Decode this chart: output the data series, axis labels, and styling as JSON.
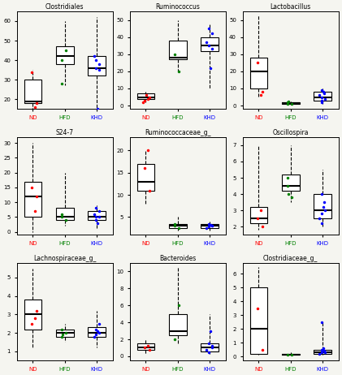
{
  "subplots": [
    {
      "title": "Clostridiales",
      "ylabel_vals": [
        20,
        30,
        40,
        50,
        60
      ],
      "ylim": [
        15,
        65
      ],
      "groups": {
        "ND": {
          "color": "red",
          "whislo": 15,
          "q1": 18,
          "med": 19,
          "q3": 30,
          "whishi": 35,
          "fliers": [
            34,
            18,
            16
          ]
        },
        "HFD": {
          "color": "green",
          "whislo": 27,
          "q1": 38,
          "med": 42,
          "q3": 47,
          "whishi": 60,
          "fliers": [
            40,
            45,
            28
          ]
        },
        "KHD": {
          "color": "blue",
          "whislo": 13,
          "q1": 32,
          "med": 36,
          "q3": 42,
          "whishi": 62,
          "fliers": [
            38,
            42,
            35,
            36,
            40,
            15,
            13
          ]
        }
      }
    },
    {
      "title": "Ruminococcus",
      "ylabel_vals": [
        0,
        10,
        20,
        30,
        40,
        50
      ],
      "ylim": [
        -2,
        55
      ],
      "groups": {
        "ND": {
          "color": "red",
          "whislo": 2,
          "q1": 4,
          "med": 5,
          "q3": 7,
          "whishi": 8,
          "fliers": [
            3,
            5,
            4,
            6,
            2
          ]
        },
        "HFD": {
          "color": "green",
          "whislo": 20,
          "q1": 27,
          "med": 28,
          "q3": 38,
          "whishi": 50,
          "fliers": [
            30,
            20
          ]
        },
        "KHD": {
          "color": "blue",
          "whislo": 10,
          "q1": 32,
          "med": 35,
          "q3": 40,
          "whishi": 48,
          "fliers": [
            33,
            37,
            42,
            45,
            35,
            22
          ]
        }
      }
    },
    {
      "title": "Lactobacillus",
      "ylabel_vals": [
        0,
        10,
        20,
        30,
        40,
        50
      ],
      "ylim": [
        -2,
        55
      ],
      "groups": {
        "ND": {
          "color": "red",
          "whislo": 5,
          "q1": 10,
          "med": 20,
          "q3": 28,
          "whishi": 53,
          "fliers": [
            25,
            8,
            6
          ]
        },
        "HFD": {
          "color": "green",
          "whislo": 0.5,
          "q1": 1,
          "med": 1.5,
          "q3": 2,
          "whishi": 2.5,
          "fliers": [
            1,
            1.2,
            1.8,
            2.2
          ]
        },
        "KHD": {
          "color": "blue",
          "whislo": 1,
          "q1": 3,
          "med": 5,
          "q3": 8,
          "whishi": 10,
          "fliers": [
            4,
            6,
            7,
            5,
            3,
            8,
            9,
            2
          ]
        }
      }
    },
    {
      "title": "S24-7",
      "ylabel_vals": [
        0,
        5,
        10,
        15,
        20,
        25,
        30
      ],
      "ylim": [
        -1,
        32
      ],
      "groups": {
        "ND": {
          "color": "red",
          "whislo": 0,
          "q1": 5,
          "med": 12,
          "q3": 17,
          "whishi": 30,
          "fliers": [
            15,
            12,
            7
          ]
        },
        "HFD": {
          "color": "green",
          "whislo": 2,
          "q1": 4,
          "med": 5,
          "q3": 8,
          "whishi": 20,
          "fliers": [
            5,
            4,
            6
          ]
        },
        "KHD": {
          "color": "blue",
          "whislo": 1,
          "q1": 4,
          "med": 5,
          "q3": 7,
          "whishi": 9,
          "fliers": [
            5,
            6,
            7,
            4,
            5,
            3,
            8
          ]
        }
      }
    },
    {
      "title": "Ruminococcaceae_g_",
      "ylabel_vals": [
        5,
        10,
        15,
        20
      ],
      "ylim": [
        1,
        23
      ],
      "groups": {
        "ND": {
          "color": "red",
          "whislo": 8,
          "q1": 11,
          "med": 13,
          "q3": 17,
          "whishi": 20,
          "fliers": [
            16,
            11,
            20
          ]
        },
        "HFD": {
          "color": "green",
          "whislo": 2,
          "q1": 2.5,
          "med": 3,
          "q3": 3.5,
          "whishi": 5,
          "fliers": [
            3,
            2.5,
            3.5
          ]
        },
        "KHD": {
          "color": "blue",
          "whislo": 2,
          "q1": 2.5,
          "med": 3,
          "q3": 3.5,
          "whishi": 4,
          "fliers": [
            3,
            2.5,
            3,
            3.5,
            2.8,
            3.2
          ]
        }
      }
    },
    {
      "title": "Oscillospira",
      "ylabel_vals": [
        2,
        3,
        4,
        5,
        6,
        7
      ],
      "ylim": [
        1.5,
        7.5
      ],
      "groups": {
        "ND": {
          "color": "red",
          "whislo": 1.8,
          "q1": 2.2,
          "med": 2.5,
          "q3": 3.2,
          "whishi": 7,
          "fliers": [
            2.5,
            2,
            3
          ]
        },
        "HFD": {
          "color": "green",
          "whislo": 3.5,
          "q1": 4.2,
          "med": 4.5,
          "q3": 5.2,
          "whishi": 7,
          "fliers": [
            4.5,
            3.8,
            5,
            4
          ]
        },
        "KHD": {
          "color": "blue",
          "whislo": 2,
          "q1": 2.5,
          "med": 3,
          "q3": 4,
          "whishi": 5.5,
          "fliers": [
            3,
            2.5,
            3.5,
            4,
            2.8,
            3.2,
            2.2
          ]
        }
      }
    },
    {
      "title": "Lachnospiraceae_g_",
      "ylabel_vals": [
        1,
        2,
        3,
        4,
        5
      ],
      "ylim": [
        0.5,
        5.8
      ],
      "groups": {
        "ND": {
          "color": "red",
          "whislo": 1.2,
          "q1": 2.2,
          "med": 3.0,
          "q3": 3.8,
          "whishi": 5.5,
          "fliers": [
            2.5,
            3.2,
            2.8
          ]
        },
        "HFD": {
          "color": "green",
          "whislo": 1.5,
          "q1": 1.8,
          "med": 2.0,
          "q3": 2.2,
          "whishi": 2.5,
          "fliers": [
            1.8,
            2.0,
            2.2,
            1.9
          ]
        },
        "KHD": {
          "color": "blue",
          "whislo": 1.2,
          "q1": 1.8,
          "med": 2.0,
          "q3": 2.3,
          "whishi": 3.2,
          "fliers": [
            2.0,
            1.8,
            2.5,
            2.2,
            1.9,
            2.1
          ]
        }
      }
    },
    {
      "title": "Bacteroides",
      "ylabel_vals": [
        0,
        2,
        4,
        6,
        8,
        10
      ],
      "ylim": [
        -0.5,
        11
      ],
      "groups": {
        "ND": {
          "color": "red",
          "whislo": 0.3,
          "q1": 0.8,
          "med": 1.0,
          "q3": 1.5,
          "whishi": 2,
          "fliers": [
            1.0,
            0.8,
            1.2
          ]
        },
        "HFD": {
          "color": "green",
          "whislo": 1.5,
          "q1": 2.5,
          "med": 3.0,
          "q3": 5.0,
          "whishi": 10.5,
          "fliers": [
            2.0,
            6.0
          ]
        },
        "KHD": {
          "color": "blue",
          "whislo": 0.3,
          "q1": 0.6,
          "med": 1.0,
          "q3": 1.5,
          "whishi": 5,
          "fliers": [
            1.0,
            0.8,
            1.2,
            1.5,
            0.5,
            3.0
          ]
        }
      }
    },
    {
      "title": "Clostridiaceae_g_",
      "ylabel_vals": [
        0,
        1,
        2,
        3,
        4,
        5,
        6
      ],
      "ylim": [
        -0.3,
        6.8
      ],
      "groups": {
        "ND": {
          "color": "red",
          "whislo": 0.1,
          "q1": 0.2,
          "med": 2.0,
          "q3": 5.0,
          "whishi": 6.5,
          "fliers": [
            3.5,
            0.5
          ]
        },
        "HFD": {
          "color": "green",
          "whislo": 0.05,
          "q1": 0.1,
          "med": 0.15,
          "q3": 0.2,
          "whishi": 0.3,
          "fliers": [
            0.1,
            0.15
          ]
        },
        "KHD": {
          "color": "blue",
          "whislo": 0.1,
          "q1": 0.2,
          "med": 0.3,
          "q3": 0.5,
          "whishi": 2.5,
          "fliers": [
            0.3,
            0.2,
            0.4,
            0.5,
            0.3,
            0.6,
            2.5
          ]
        }
      }
    }
  ],
  "group_colors": {
    "ND": "red",
    "HFD": "green",
    "KHD": "blue"
  },
  "group_names": [
    "ND",
    "HFD",
    "KHD"
  ],
  "bg_color": "#f5f5f0"
}
